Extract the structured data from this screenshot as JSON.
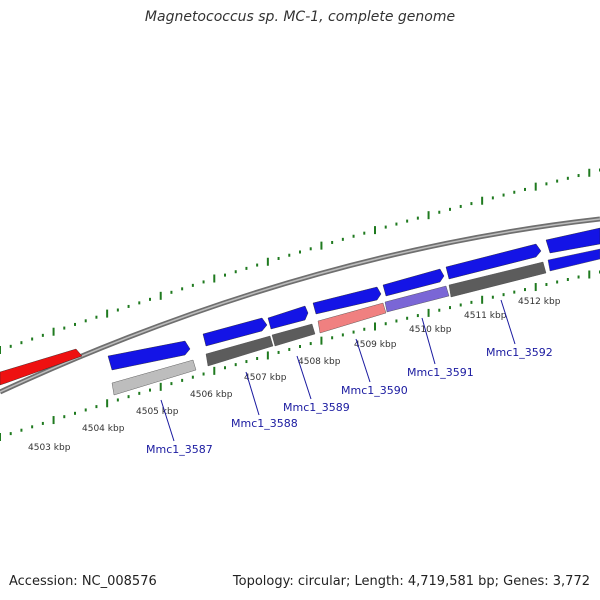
{
  "title": "Magnetococcus sp. MC-1, complete genome",
  "footer": {
    "accession": "Accession: NC_008576",
    "summary": "Topology: circular; Length: 4,719,581 bp; Genes: 3,772"
  },
  "colors": {
    "backbone": "#8a8a8a",
    "tick": "#1f7a1f",
    "forward_gene": "#1414e6",
    "red_gene": "#ee1111",
    "pink_gene": "#f08080",
    "violet_gene": "#7a66d6",
    "dark_gray_gene": "#5c5c5c",
    "light_gray_gene": "#bdbdbd",
    "label": "#1a1aa0"
  },
  "kbp_labels": [
    "4503 kbp",
    "4504 kbp",
    "4505 kbp",
    "4506 kbp",
    "4507 kbp",
    "4508 kbp",
    "4509 kbp",
    "4510 kbp",
    "4511 kbp",
    "4512 kbp"
  ],
  "gene_labels": [
    "Mmc1_3587",
    "Mmc1_3588",
    "Mmc1_3589",
    "Mmc1_3590",
    "Mmc1_3591",
    "Mmc1_3592"
  ]
}
